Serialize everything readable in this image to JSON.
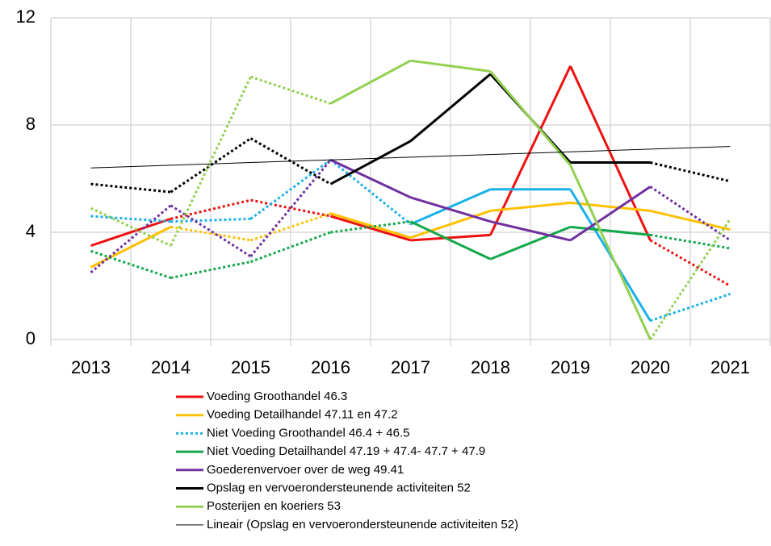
{
  "chart_data": {
    "type": "line",
    "categories": [
      "2013",
      "2014",
      "2015",
      "2016",
      "2017",
      "2018",
      "2019",
      "2020",
      "2021"
    ],
    "ylim": [
      0,
      12
    ],
    "yticks": [
      0,
      4,
      8,
      12
    ],
    "grid": true,
    "series": [
      {
        "name": "Voeding Groothandel 46.3",
        "color": "#ee1111",
        "width": 3,
        "legend_style": "solid",
        "values": [
          3.5,
          4.5,
          5.2,
          4.6,
          3.7,
          3.9,
          10.2,
          3.7,
          2.0
        ],
        "segment_styles": [
          "solid",
          "dotted",
          "dotted",
          "solid",
          "solid",
          "solid",
          "solid",
          "dotted"
        ]
      },
      {
        "name": "Voeding Detailhandel 47.11 en 47.2",
        "color": "#ffc000",
        "width": 3,
        "legend_style": "solid",
        "values": [
          2.7,
          4.2,
          3.7,
          4.7,
          3.8,
          4.8,
          5.1,
          4.8,
          4.1
        ],
        "segment_styles": [
          "solid",
          "dotted",
          "dotted",
          "solid",
          "solid",
          "solid",
          "solid",
          "solid"
        ]
      },
      {
        "name": "Niet Voeding Groothandel 46.4 + 46.5",
        "color": "#1ab0e8",
        "width": 3,
        "legend_style": "dotted",
        "values": [
          4.6,
          4.4,
          4.5,
          6.7,
          4.3,
          5.6,
          5.6,
          0.7,
          1.7
        ],
        "segment_styles": [
          "dotted",
          "dotted",
          "dotted",
          "dotted",
          "solid",
          "solid",
          "solid",
          "dotted"
        ]
      },
      {
        "name": "Niet Voeding Detailhandel 47.19 + 47.4- 47.7 + 47.9",
        "color": "#12a84a",
        "width": 3,
        "legend_style": "solid",
        "values": [
          3.3,
          2.3,
          2.9,
          4.0,
          4.4,
          3.0,
          4.2,
          3.9,
          3.4
        ],
        "segment_styles": [
          "dotted",
          "dotted",
          "dotted",
          "dotted",
          "solid",
          "solid",
          "solid",
          "dotted"
        ]
      },
      {
        "name": "Goederenvervoer over de weg 49.41",
        "color": "#7030a0",
        "width": 3,
        "legend_style": "solid",
        "values": [
          2.5,
          5.0,
          3.1,
          6.7,
          5.3,
          4.4,
          3.7,
          5.7,
          3.7
        ],
        "segment_styles": [
          "dotted",
          "dotted",
          "dotted",
          "solid",
          "solid",
          "solid",
          "solid",
          "dotted"
        ]
      },
      {
        "name": "Opslag en vervoerondersteunende activiteiten 52",
        "color": "#000000",
        "width": 3,
        "legend_style": "solid",
        "values": [
          5.8,
          5.5,
          7.5,
          5.8,
          7.4,
          9.9,
          6.6,
          6.6,
          5.9
        ],
        "segment_styles": [
          "dotted",
          "dotted",
          "dotted",
          "solid",
          "solid",
          "solid",
          "solid",
          "dotted"
        ]
      },
      {
        "name": "Posterijen en koeriers  53",
        "color": "#92d050",
        "width": 3,
        "legend_style": "solid",
        "values": [
          4.9,
          3.5,
          9.8,
          8.8,
          10.4,
          10.0,
          6.5,
          0.0,
          4.5
        ],
        "segment_styles": [
          "dotted",
          "dotted",
          "dotted",
          "solid",
          "solid",
          "solid",
          "solid",
          "dotted"
        ]
      },
      {
        "name": "Lineair (Opslag en vervoerondersteunende activiteiten 52)",
        "color": "#000000",
        "width": 1,
        "legend_style": "solid",
        "values": [
          6.4,
          6.5,
          6.6,
          6.7,
          6.8,
          6.9,
          7.0,
          7.1,
          7.2
        ],
        "segment_styles": [
          "solid",
          "solid",
          "solid",
          "solid",
          "solid",
          "solid",
          "solid",
          "solid"
        ]
      }
    ]
  }
}
